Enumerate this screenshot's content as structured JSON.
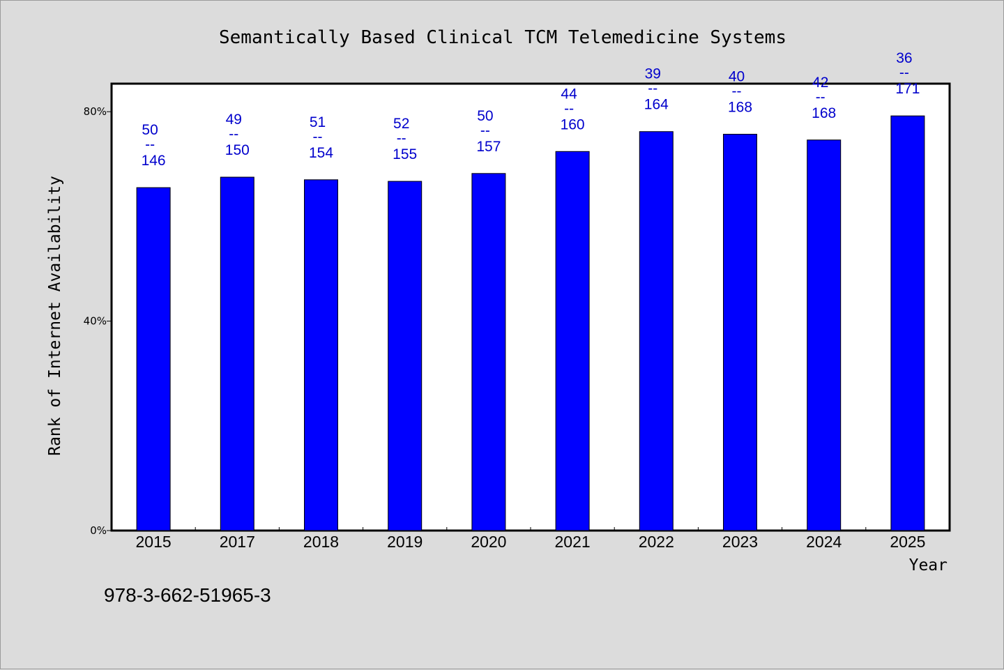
{
  "chart_data": {
    "type": "bar",
    "title": "Semantically Based Clinical TCM Telemedicine Systems",
    "xlabel": "Year",
    "ylabel": "Rank of Internet Availability",
    "categories": [
      "2015",
      "2017",
      "2018",
      "2019",
      "2020",
      "2021",
      "2022",
      "2023",
      "2024",
      "2025"
    ],
    "values": [
      65.5,
      67.5,
      67.0,
      66.7,
      68.2,
      72.4,
      76.2,
      75.7,
      74.6,
      79.2
    ],
    "rank": [
      50,
      49,
      51,
      52,
      50,
      44,
      39,
      40,
      42,
      36
    ],
    "total": [
      146,
      150,
      154,
      155,
      157,
      160,
      164,
      168,
      168,
      171
    ],
    "separator": "--",
    "ylim": [
      0,
      100
    ],
    "yticks": [
      {
        "value": 0,
        "label": "0%"
      },
      {
        "value": 40,
        "label": "40%"
      },
      {
        "value": 80,
        "label": "80%"
      }
    ],
    "bar_color": "#0000ff",
    "label_color": "#0000cc",
    "grid": false,
    "legend": "none"
  },
  "footer": {
    "isbn": "978-3-662-51965-3"
  }
}
